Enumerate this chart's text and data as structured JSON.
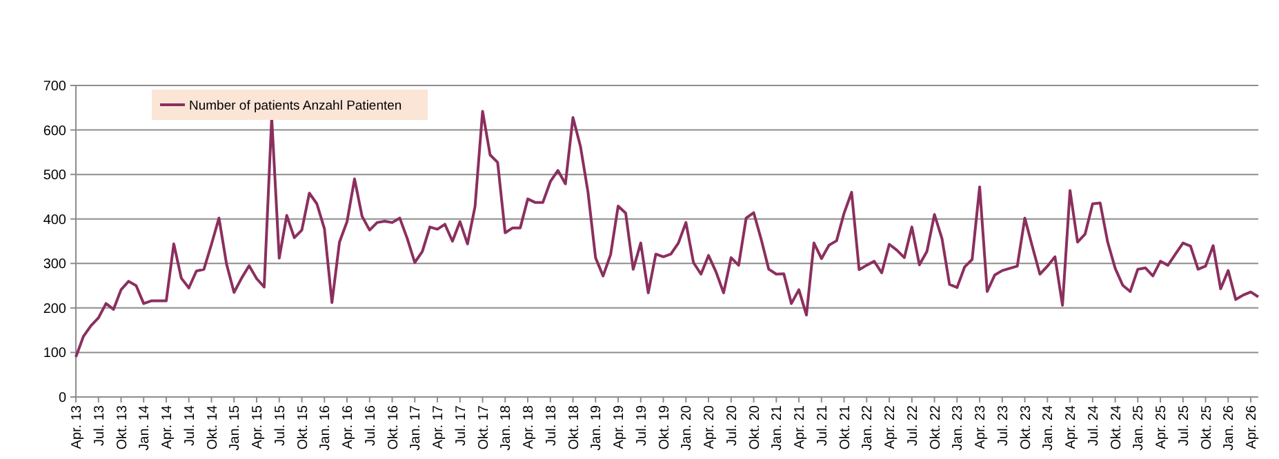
{
  "chart_data": {
    "type": "line",
    "categories": [
      "Apr. 13",
      null,
      null,
      "Jul. 13",
      null,
      null,
      "Okt. 13",
      null,
      null,
      "Jan. 14",
      null,
      null,
      "Apr. 14",
      null,
      null,
      "Jul. 14",
      null,
      null,
      "Okt. 14",
      null,
      null,
      "Jan. 15",
      null,
      null,
      "Apr. 15",
      null,
      null,
      "Jul. 15",
      null,
      null,
      "Okt. 15",
      null,
      null,
      "Jan. 16",
      null,
      null,
      "Apr. 16",
      null,
      null,
      "Jul. 16",
      null,
      null,
      "Okt. 16",
      null,
      null,
      "Jan. 17",
      null,
      null,
      "Apr. 17",
      null,
      null,
      "Jul. 17",
      null,
      null,
      "Okt. 17",
      null,
      null,
      "Jan. 18",
      null,
      null,
      "Apr. 18",
      null,
      null,
      "Jul. 18",
      null,
      null,
      "Okt. 18",
      null,
      null,
      "Jan. 19",
      null,
      null,
      "Apr. 19",
      null,
      null,
      "Jul. 19",
      null,
      null,
      "Okt. 19",
      null,
      null,
      "Jan. 20",
      null,
      null,
      "Apr. 20",
      null,
      null,
      "Jul. 20",
      null,
      null,
      "Okt. 20",
      null,
      null,
      "Jan. 21",
      null,
      null,
      "Apr. 21",
      null,
      null,
      "Jul. 21",
      null,
      null,
      "Okt. 21",
      null,
      null,
      "Jan. 22",
      null,
      null,
      "Apr. 22",
      null,
      null,
      "Jul. 22",
      null,
      null,
      "Okt. 22",
      null,
      null,
      "Jan. 23",
      null,
      null,
      "Apr. 23",
      null,
      null,
      "Jul. 23",
      null,
      null,
      "Okt. 23",
      null,
      null,
      "Jan. 24",
      null,
      null,
      "Apr. 24",
      null,
      null,
      "Jul. 24",
      null,
      null,
      "Okt. 24",
      null,
      null,
      "Jan. 25",
      null,
      null,
      "Apr. 25",
      null,
      null,
      "Jul. 25",
      null,
      null,
      "Okt. 25",
      null,
      null,
      "Jan. 26",
      null,
      null,
      "Apr. 26",
      null
    ],
    "series": [
      {
        "name": "Number of patients Anzahl Patienten",
        "color": "#8b2f5e",
        "values": [
          90,
          136,
          160,
          178,
          210,
          197,
          241,
          260,
          250,
          210,
          216,
          216,
          216,
          344,
          267,
          245,
          283,
          287,
          343,
          402,
          299,
          235,
          267,
          295,
          266,
          247,
          628,
          312,
          408,
          358,
          375,
          458,
          434,
          378,
          212,
          348,
          394,
          490,
          406,
          375,
          392,
          395,
          392,
          402,
          356,
          302,
          327,
          382,
          377,
          388,
          350,
          394,
          344,
          428,
          642,
          544,
          527,
          369,
          380,
          380,
          445,
          437,
          437,
          484,
          509,
          479,
          628,
          563,
          460,
          313,
          272,
          320,
          429,
          413,
          287,
          346,
          234,
          321,
          315,
          321,
          346,
          392,
          302,
          276,
          318,
          281,
          234,
          313,
          296,
          402,
          414,
          354,
          287,
          276,
          277,
          210,
          241,
          184,
          346,
          311,
          341,
          351,
          413,
          460,
          286,
          296,
          305,
          279,
          343,
          330,
          313,
          382,
          297,
          327,
          410,
          356,
          253,
          246,
          292,
          309,
          472,
          237,
          274,
          284,
          289,
          294,
          402,
          338,
          276,
          294,
          315,
          206,
          464,
          348,
          366,
          434,
          436,
          348,
          289,
          251,
          237,
          287,
          290,
          272,
          305,
          296,
          321,
          346,
          339,
          287,
          294,
          340,
          243,
          284,
          219,
          229,
          236,
          225
        ]
      }
    ],
    "ylim": [
      0,
      700
    ],
    "yticks": [
      0,
      100,
      200,
      300,
      400,
      500,
      600,
      700
    ],
    "grid": "y",
    "legend": "top left",
    "marker": "none",
    "line_style": "solid"
  }
}
